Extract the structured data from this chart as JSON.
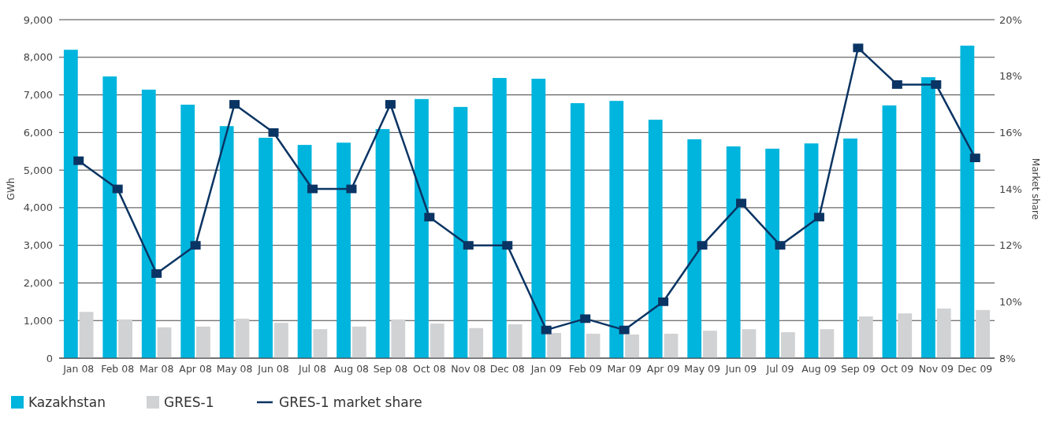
{
  "chart_data": {
    "type": "bar",
    "ylabel": "GWh",
    "y2label": "Market share",
    "categories": [
      "Jan 08",
      "Feb 08",
      "Mar 08",
      "Apr 08",
      "May 08",
      "Jun 08",
      "Jul 08",
      "Aug 08",
      "Sep 08",
      "Oct 08",
      "Nov 08",
      "Dec 08",
      "Jan 09",
      "Feb 09",
      "Mar 09",
      "Apr 09",
      "May 09",
      "Jun 09",
      "Jul 09",
      "Aug 09",
      "Sep 09",
      "Oct 09",
      "Nov 09",
      "Dec 09"
    ],
    "series": [
      {
        "name": "Kazakhstan",
        "color": "#00b5dd",
        "values": [
          8200,
          7490,
          7140,
          6740,
          6170,
          5860,
          5670,
          5730,
          6090,
          6890,
          6680,
          7450,
          7430,
          6780,
          6840,
          6340,
          5820,
          5630,
          5570,
          5710,
          5840,
          6720,
          7470,
          8310
        ]
      },
      {
        "name": "GRES-1",
        "color": "#d1d2d4",
        "values": [
          1230,
          1030,
          820,
          840,
          1050,
          940,
          770,
          840,
          1030,
          920,
          800,
          900,
          670,
          650,
          630,
          650,
          730,
          770,
          690,
          770,
          1110,
          1190,
          1320,
          1280
        ]
      },
      {
        "name": "GRES-1 market share",
        "type": "line",
        "axis": "y2",
        "color": "#0a3463",
        "marker": "square",
        "line_style": "solid",
        "values": [
          15.0,
          14.0,
          11.0,
          12.0,
          17.0,
          16.0,
          14.0,
          14.0,
          17.0,
          13.0,
          12.0,
          12.0,
          9.0,
          9.4,
          9.0,
          10.0,
          12.0,
          13.5,
          12.0,
          13.0,
          19.0,
          17.7,
          17.7,
          15.1
        ]
      }
    ],
    "ylim": [
      0,
      9000
    ],
    "yticks": [
      {
        "value": 0,
        "label": "0"
      },
      {
        "value": 1000,
        "label": "1,000"
      },
      {
        "value": 2000,
        "label": "2,000"
      },
      {
        "value": 3000,
        "label": "3,000"
      },
      {
        "value": 4000,
        "label": "4,000"
      },
      {
        "value": 5000,
        "label": "5,000"
      },
      {
        "value": 6000,
        "label": "6,000"
      },
      {
        "value": 7000,
        "label": "7,000"
      },
      {
        "value": 8000,
        "label": "8,000"
      },
      {
        "value": 9000,
        "label": "9,000"
      }
    ],
    "y2lim": [
      8,
      20
    ],
    "y2ticks": [
      {
        "value": 8,
        "label": "8%"
      },
      {
        "value": 10,
        "label": "10%"
      },
      {
        "value": 12,
        "label": "12%"
      },
      {
        "value": 14,
        "label": "14%"
      },
      {
        "value": 16,
        "label": "16%"
      },
      {
        "value": 18,
        "label": "18%"
      },
      {
        "value": 20,
        "label": "20%"
      }
    ],
    "grid": "y",
    "legend": "bottom left"
  }
}
